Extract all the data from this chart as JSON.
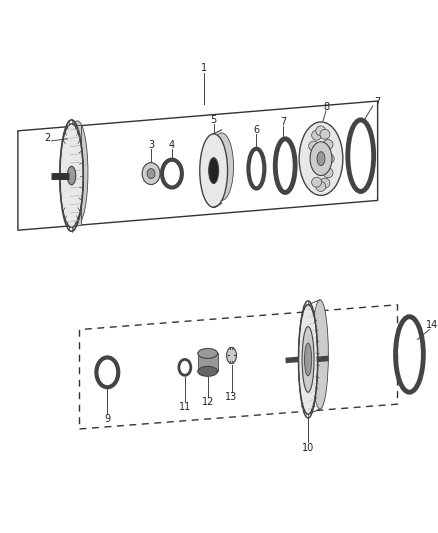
{
  "background_color": "#ffffff",
  "fig_width": 4.38,
  "fig_height": 5.33,
  "dpi": 100,
  "line_color": "#444444",
  "part_stroke": "#444444",
  "part_fill_light": "#e8e8e8",
  "part_fill_mid": "#cccccc",
  "part_fill_dark": "#999999",
  "part_fill_vdark": "#666666",
  "label_fontsize": 7.0,
  "label_color": "#222222"
}
